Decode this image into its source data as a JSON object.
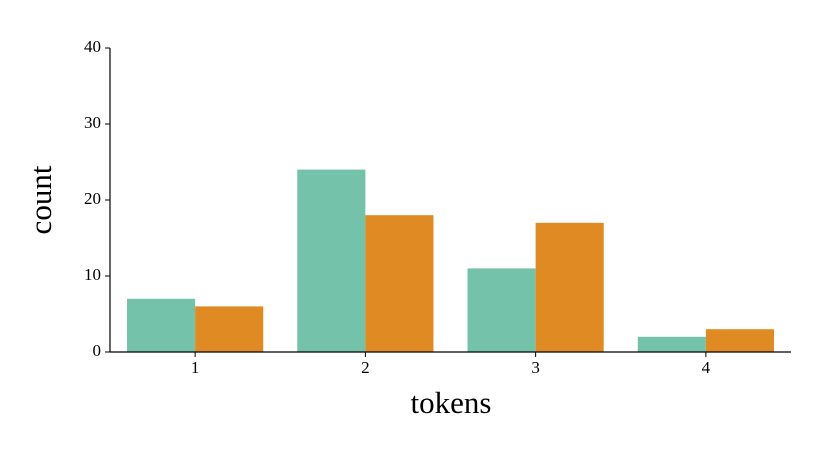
{
  "chart_data": {
    "type": "bar",
    "x_label": "tokens",
    "y_label": "count",
    "categories": [
      "1",
      "2",
      "3",
      "4"
    ],
    "series": [
      {
        "color": "#74c2a9",
        "values": [
          7,
          24,
          11,
          2
        ]
      },
      {
        "color": "#df8a22",
        "values": [
          6,
          18,
          17,
          3
        ]
      }
    ],
    "ylim": [
      0,
      40
    ],
    "yticks": [
      0,
      10,
      20,
      30,
      40
    ]
  }
}
